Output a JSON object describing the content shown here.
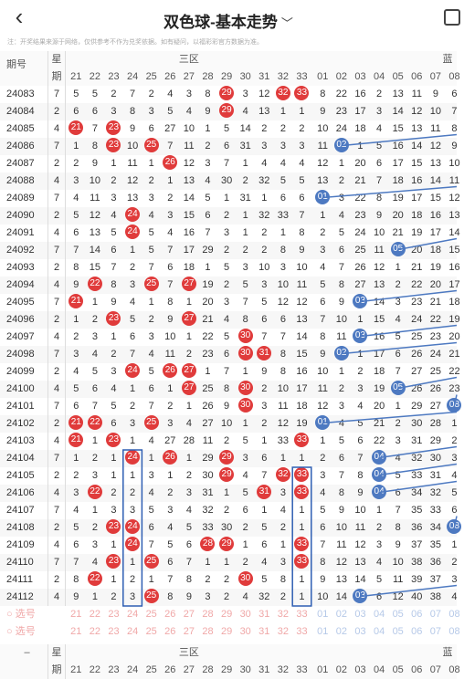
{
  "header": {
    "back_icon": "back-arrow-icon",
    "title": "双色球-基本走势",
    "dropdown_icon": "chevron-down-icon",
    "share_icon": "share-icon"
  },
  "note": "注：开奖结果来源于网络，仅供参考不作为兑奖依据。如有疑问，以福彩彩官方数据为准。",
  "col_header": {
    "period": "期号",
    "week_top": "星",
    "week_bottom": "期",
    "zone": "三区",
    "blue_zone": "蓝"
  },
  "red_cols": [
    "21",
    "22",
    "23",
    "24",
    "25",
    "26",
    "27",
    "28",
    "29",
    "30",
    "31",
    "32",
    "33"
  ],
  "blue_cols": [
    "01",
    "02",
    "03",
    "04",
    "05",
    "06",
    "07",
    "08"
  ],
  "rows": [
    {
      "p": "24083",
      "w": "7",
      "red": [
        "5",
        "5",
        "2",
        "7",
        "2",
        "4",
        "3",
        "8",
        "29",
        "3",
        "12",
        "32",
        "33"
      ],
      "blue": [
        "8",
        "22",
        "16",
        "2",
        "13",
        "11",
        "9",
        "6"
      ],
      "bl": 0
    },
    {
      "p": "24084",
      "w": "2",
      "red": [
        "6",
        "6",
        "3",
        "8",
        "3",
        "5",
        "4",
        "9",
        "29",
        "4",
        "13",
        "1",
        "1"
      ],
      "blue": [
        "9",
        "23",
        "17",
        "3",
        "14",
        "12",
        "10",
        "7"
      ],
      "bl": 0
    },
    {
      "p": "24085",
      "w": "4",
      "red": [
        "21",
        "7",
        "23",
        "9",
        "6",
        "27",
        "10",
        "1",
        "5",
        "14",
        "2",
        "2",
        "2"
      ],
      "blue": [
        "10",
        "24",
        "18",
        "4",
        "15",
        "13",
        "11",
        "8"
      ],
      "bl": 0
    },
    {
      "p": "24086",
      "w": "7",
      "red": [
        "1",
        "8",
        "23",
        "10",
        "25",
        "7",
        "11",
        "2",
        "6",
        "31",
        "3",
        "3",
        "3"
      ],
      "blue": [
        "11",
        "02",
        "1",
        "5",
        "16",
        "14",
        "12",
        "9"
      ],
      "bl": 2
    },
    {
      "p": "24087",
      "w": "2",
      "red": [
        "2",
        "9",
        "1",
        "11",
        "1",
        "26",
        "12",
        "3",
        "7",
        "1",
        "4",
        "4",
        "4"
      ],
      "blue": [
        "12",
        "1",
        "20",
        "6",
        "17",
        "15",
        "13",
        "10"
      ],
      "bl": 0
    },
    {
      "p": "24088",
      "w": "4",
      "red": [
        "3",
        "10",
        "2",
        "12",
        "2",
        "1",
        "13",
        "4",
        "30",
        "2",
        "32",
        "5",
        "5"
      ],
      "blue": [
        "13",
        "2",
        "21",
        "7",
        "18",
        "16",
        "14",
        "11"
      ],
      "bl": 0
    },
    {
      "p": "24089",
      "w": "7",
      "red": [
        "4",
        "11",
        "3",
        "13",
        "3",
        "2",
        "14",
        "5",
        "1",
        "31",
        "1",
        "6",
        "6"
      ],
      "blue": [
        "01",
        "3",
        "22",
        "8",
        "19",
        "17",
        "15",
        "12"
      ],
      "bl": 1
    },
    {
      "p": "24090",
      "w": "2",
      "red": [
        "5",
        "12",
        "4",
        "24",
        "4",
        "3",
        "15",
        "6",
        "2",
        "1",
        "32",
        "33",
        "7"
      ],
      "blue": [
        "1",
        "4",
        "23",
        "9",
        "20",
        "18",
        "16",
        "13"
      ],
      "bl": 0
    },
    {
      "p": "24091",
      "w": "4",
      "red": [
        "6",
        "13",
        "5",
        "24",
        "5",
        "4",
        "16",
        "7",
        "3",
        "1",
        "2",
        "1",
        "8"
      ],
      "blue": [
        "2",
        "5",
        "24",
        "10",
        "21",
        "19",
        "17",
        "14"
      ],
      "bl": 0
    },
    {
      "p": "24092",
      "w": "7",
      "red": [
        "7",
        "14",
        "6",
        "1",
        "5",
        "7",
        "17",
        "29",
        "2",
        "2",
        "2",
        "8",
        "9"
      ],
      "blue": [
        "3",
        "6",
        "25",
        "11",
        "05",
        "20",
        "18",
        "15"
      ],
      "bl": 5
    },
    {
      "p": "24093",
      "w": "2",
      "red": [
        "8",
        "15",
        "7",
        "2",
        "7",
        "6",
        "18",
        "1",
        "5",
        "3",
        "10",
        "3",
        "10"
      ],
      "blue": [
        "4",
        "7",
        "26",
        "12",
        "1",
        "21",
        "19",
        "16"
      ],
      "bl": 0
    },
    {
      "p": "24094",
      "w": "4",
      "red": [
        "9",
        "22",
        "8",
        "3",
        "25",
        "7",
        "27",
        "19",
        "2",
        "5",
        "3",
        "10",
        "11"
      ],
      "blue": [
        "5",
        "8",
        "27",
        "13",
        "2",
        "22",
        "20",
        "17"
      ],
      "bl": 0
    },
    {
      "p": "24095",
      "w": "7",
      "red": [
        "21",
        "1",
        "9",
        "4",
        "1",
        "8",
        "1",
        "20",
        "3",
        "7",
        "5",
        "12",
        "12"
      ],
      "blue": [
        "6",
        "9",
        "03",
        "14",
        "3",
        "23",
        "21",
        "18"
      ],
      "bl": 3
    },
    {
      "p": "24096",
      "w": "2",
      "red": [
        "1",
        "2",
        "23",
        "5",
        "2",
        "9",
        "27",
        "21",
        "4",
        "8",
        "6",
        "6",
        "13"
      ],
      "blue": [
        "7",
        "10",
        "1",
        "15",
        "4",
        "24",
        "22",
        "19"
      ],
      "bl": 0
    },
    {
      "p": "24097",
      "w": "4",
      "red": [
        "2",
        "3",
        "1",
        "6",
        "3",
        "10",
        "1",
        "22",
        "5",
        "30",
        "7",
        "7",
        "14"
      ],
      "blue": [
        "8",
        "11",
        "03",
        "16",
        "5",
        "25",
        "23",
        "20"
      ],
      "bl": 3
    },
    {
      "p": "24098",
      "w": "7",
      "red": [
        "3",
        "4",
        "2",
        "7",
        "4",
        "11",
        "2",
        "23",
        "6",
        "30",
        "31",
        "8",
        "15"
      ],
      "blue": [
        "9",
        "02",
        "1",
        "17",
        "6",
        "26",
        "24",
        "21"
      ],
      "bl": 2
    },
    {
      "p": "24099",
      "w": "2",
      "red": [
        "4",
        "5",
        "3",
        "24",
        "5",
        "26",
        "27",
        "1",
        "7",
        "1",
        "9",
        "8",
        "16"
      ],
      "blue": [
        "10",
        "1",
        "2",
        "18",
        "7",
        "27",
        "25",
        "22"
      ],
      "bl": 0
    },
    {
      "p": "24100",
      "w": "4",
      "red": [
        "5",
        "6",
        "4",
        "1",
        "6",
        "1",
        "27",
        "25",
        "8",
        "30",
        "2",
        "10",
        "17"
      ],
      "blue": [
        "11",
        "2",
        "3",
        "19",
        "05",
        "26",
        "26",
        "23"
      ],
      "bl": 5
    },
    {
      "p": "24101",
      "w": "7",
      "red": [
        "6",
        "7",
        "5",
        "2",
        "7",
        "2",
        "1",
        "26",
        "9",
        "30",
        "3",
        "11",
        "18"
      ],
      "blue": [
        "12",
        "3",
        "4",
        "20",
        "1",
        "29",
        "27",
        "08"
      ],
      "bl": 8
    },
    {
      "p": "24102",
      "w": "2",
      "red": [
        "21",
        "22",
        "6",
        "3",
        "25",
        "3",
        "4",
        "27",
        "10",
        "1",
        "2",
        "12",
        "19"
      ],
      "blue": [
        "01",
        "4",
        "5",
        "21",
        "2",
        "30",
        "28",
        "1"
      ],
      "bl": 1
    },
    {
      "p": "24103",
      "w": "4",
      "red": [
        "21",
        "1",
        "23",
        "1",
        "4",
        "27",
        "28",
        "11",
        "2",
        "5",
        "1",
        "33",
        "33"
      ],
      "blue": [
        "1",
        "5",
        "6",
        "22",
        "3",
        "31",
        "29",
        "2"
      ],
      "bl": 0
    },
    {
      "p": "24104",
      "w": "7",
      "red": [
        "1",
        "2",
        "1",
        "24",
        "1",
        "26",
        "1",
        "29",
        "29",
        "3",
        "6",
        "1",
        "1"
      ],
      "blue": [
        "2",
        "6",
        "7",
        "04",
        "4",
        "32",
        "30",
        "3"
      ],
      "bl": 4
    },
    {
      "p": "24105",
      "w": "2",
      "red": [
        "2",
        "3",
        "1",
        "1",
        "3",
        "1",
        "2",
        "30",
        "29",
        "4",
        "7",
        "32",
        "33"
      ],
      "blue": [
        "3",
        "7",
        "8",
        "04",
        "5",
        "33",
        "31",
        "4"
      ],
      "bl": 4
    },
    {
      "p": "24106",
      "w": "4",
      "red": [
        "3",
        "22",
        "2",
        "2",
        "4",
        "2",
        "3",
        "31",
        "1",
        "5",
        "31",
        "3",
        "33"
      ],
      "blue": [
        "4",
        "8",
        "9",
        "04",
        "6",
        "34",
        "32",
        "5"
      ],
      "bl": 4
    },
    {
      "p": "24107",
      "w": "7",
      "red": [
        "4",
        "1",
        "3",
        "3",
        "5",
        "3",
        "4",
        "32",
        "2",
        "6",
        "1",
        "4",
        "1"
      ],
      "blue": [
        "5",
        "9",
        "10",
        "1",
        "7",
        "35",
        "33",
        "6"
      ],
      "bl": 0
    },
    {
      "p": "24108",
      "w": "2",
      "red": [
        "5",
        "2",
        "23",
        "24",
        "6",
        "4",
        "5",
        "33",
        "30",
        "2",
        "5",
        "2",
        "1"
      ],
      "blue": [
        "6",
        "10",
        "11",
        "2",
        "8",
        "36",
        "34",
        "08"
      ],
      "bl": 8
    },
    {
      "p": "24109",
      "w": "4",
      "red": [
        "6",
        "3",
        "1",
        "24",
        "7",
        "5",
        "6",
        "28",
        "29",
        "1",
        "6",
        "1",
        "33"
      ],
      "blue": [
        "7",
        "11",
        "12",
        "3",
        "9",
        "37",
        "35",
        "1"
      ],
      "bl": 0
    },
    {
      "p": "24110",
      "w": "7",
      "red": [
        "7",
        "4",
        "23",
        "1",
        "25",
        "6",
        "7",
        "1",
        "1",
        "2",
        "4",
        "3",
        "33"
      ],
      "blue": [
        "8",
        "12",
        "13",
        "4",
        "10",
        "38",
        "36",
        "2"
      ],
      "bl": 0
    },
    {
      "p": "24111",
      "w": "2",
      "red": [
        "8",
        "22",
        "1",
        "2",
        "1",
        "7",
        "8",
        "2",
        "2",
        "30",
        "5",
        "8",
        "1"
      ],
      "blue": [
        "9",
        "13",
        "14",
        "5",
        "11",
        "39",
        "37",
        "3"
      ],
      "bl": 0
    },
    {
      "p": "24112",
      "w": "4",
      "red": [
        "9",
        "1",
        "2",
        "3",
        "25",
        "8",
        "9",
        "3",
        "2",
        "4",
        "32",
        "2",
        "1"
      ],
      "blue": [
        "10",
        "14",
        "03",
        "6",
        "12",
        "40",
        "38",
        "4"
      ],
      "bl": 3
    }
  ],
  "select_label": "选号",
  "footer": {
    "week_top": "星",
    "week_bottom": "期",
    "zone": "三区",
    "blue_zone": "蓝"
  }
}
